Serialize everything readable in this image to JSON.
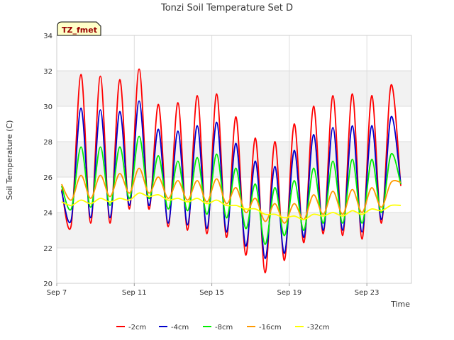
{
  "chart_data": {
    "type": "line",
    "title": "Tonzi Soil Temperature Set D",
    "xlabel": "Time",
    "ylabel": "Soil Temperature (C)",
    "ylim": [
      20,
      34
    ],
    "yticks": [
      20,
      22,
      24,
      26,
      28,
      30,
      32,
      34
    ],
    "xlim_days": [
      7,
      25.3
    ],
    "xticks": [
      {
        "day": 7,
        "label": "Sep 7"
      },
      {
        "day": 11,
        "label": "Sep 11"
      },
      {
        "day": 15,
        "label": "Sep 15"
      },
      {
        "day": 19,
        "label": "Sep 19"
      },
      {
        "day": 23,
        "label": "Sep 23"
      }
    ],
    "grid": true,
    "banded_background": true,
    "legend_position": "bottom",
    "annotation": {
      "text": "TZ_fmet",
      "position": "top-left"
    },
    "x_start_day": 7.25,
    "x_step_days": 0.5,
    "series": [
      {
        "name": "-2cm",
        "color": "#ff0000",
        "values": [
          25.3,
          23.3,
          31.8,
          23.4,
          31.7,
          23.4,
          31.5,
          24.2,
          32.1,
          24.2,
          30.1,
          23.2,
          30.2,
          23.0,
          30.6,
          22.8,
          30.7,
          22.6,
          29.4,
          21.6,
          28.2,
          20.6,
          28.0,
          21.3,
          29.0,
          22.3,
          30.0,
          22.8,
          30.6,
          22.7,
          30.7,
          22.5,
          30.6,
          23.4,
          31.2,
          25.5
        ]
      },
      {
        "name": "-4cm",
        "color": "#0000cc",
        "values": [
          25.2,
          23.6,
          29.9,
          23.7,
          29.8,
          23.7,
          29.7,
          24.4,
          30.3,
          24.4,
          28.7,
          23.4,
          28.6,
          23.3,
          28.9,
          23.1,
          29.1,
          22.9,
          27.9,
          22.1,
          26.9,
          21.4,
          26.6,
          21.7,
          27.5,
          22.6,
          28.4,
          23.0,
          28.8,
          23.0,
          28.9,
          22.9,
          28.9,
          23.6,
          29.4,
          25.6
        ]
      },
      {
        "name": "-8cm",
        "color": "#00ee00",
        "values": [
          25.5,
          24.2,
          27.7,
          24.3,
          27.7,
          24.4,
          27.7,
          24.8,
          28.3,
          24.8,
          27.2,
          24.2,
          26.9,
          24.1,
          27.1,
          23.9,
          27.3,
          23.7,
          26.5,
          23.1,
          25.6,
          22.2,
          25.4,
          22.7,
          25.8,
          23.0,
          26.5,
          23.4,
          26.9,
          23.4,
          27.0,
          23.4,
          27.0,
          24.0,
          27.3,
          25.6
        ]
      },
      {
        "name": "-16cm",
        "color": "#ff9900",
        "values": [
          25.6,
          24.7,
          26.1,
          24.8,
          26.1,
          24.9,
          26.2,
          25.1,
          26.5,
          25.1,
          26.0,
          24.8,
          25.8,
          24.7,
          25.8,
          24.6,
          25.9,
          24.5,
          25.4,
          24.0,
          24.8,
          23.5,
          24.5,
          23.4,
          24.5,
          23.6,
          25.0,
          23.9,
          25.2,
          23.9,
          25.3,
          24.0,
          25.4,
          24.3,
          25.7,
          25.7
        ]
      },
      {
        "name": "-32cm",
        "color": "#ffff00",
        "values": [
          24.6,
          24.4,
          24.7,
          24.5,
          24.8,
          24.6,
          24.8,
          24.7,
          25.1,
          24.9,
          25.0,
          24.7,
          24.8,
          24.6,
          24.8,
          24.5,
          24.7,
          24.4,
          24.4,
          24.2,
          24.2,
          23.9,
          23.9,
          23.7,
          23.8,
          23.6,
          23.9,
          23.8,
          24.0,
          23.8,
          24.1,
          23.9,
          24.2,
          24.1,
          24.4,
          24.4
        ]
      }
    ]
  }
}
